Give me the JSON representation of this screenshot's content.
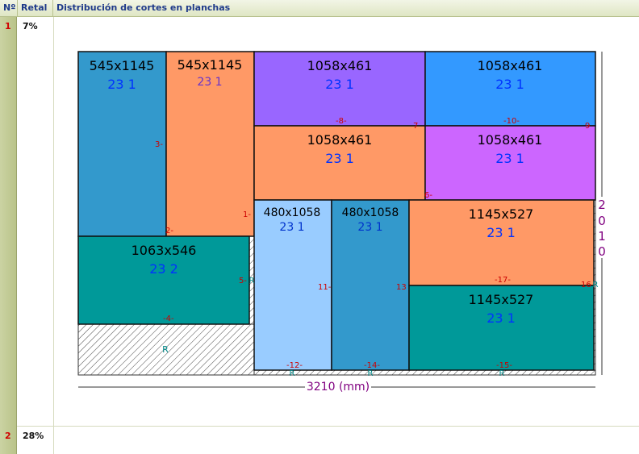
{
  "table": {
    "headers": {
      "no": "Nº",
      "retal": "Retal",
      "dist": "Distribución de cortes en planchas"
    },
    "rows": [
      {
        "no": "1",
        "retal": "7%"
      },
      {
        "no": "2",
        "retal": "28%"
      }
    ]
  },
  "diagram": {
    "width_label": "3210 (mm)",
    "height_label": "2010",
    "colors": {
      "blue": "#3399cc",
      "orange": "#ff9966",
      "purple": "#9966ff",
      "sky": "#3399ff",
      "magenta": "#cc66ff",
      "teal": "#009999",
      "light_blue": "#99ccff"
    },
    "pieces": [
      {
        "dim": "545x1145",
        "qty": "23 1"
      },
      {
        "dim": "545x1145",
        "qty": "23 1"
      },
      {
        "dim": "1058x461",
        "qty": "23 1"
      },
      {
        "dim": "1058x461",
        "qty": "23 1"
      },
      {
        "dim": "1058x461",
        "qty": "23 1"
      },
      {
        "dim": "1058x461",
        "qty": "23 1"
      },
      {
        "dim": "1063x546",
        "qty": "23 2"
      },
      {
        "dim": "480x1058",
        "qty": "23 1"
      },
      {
        "dim": "480x1058",
        "qty": "23 1"
      },
      {
        "dim": "1145x527",
        "qty": "23 1"
      },
      {
        "dim": "1145x527",
        "qty": "23 1"
      }
    ],
    "cut_labels": [
      "3-",
      "2-",
      "1-",
      "-8-",
      "7",
      "-10-",
      "9",
      "6-",
      "5-",
      "11-",
      "13",
      "-17-",
      "16",
      "-4-",
      "-12-",
      "-14-",
      "-15-"
    ],
    "waste_label": "R"
  }
}
